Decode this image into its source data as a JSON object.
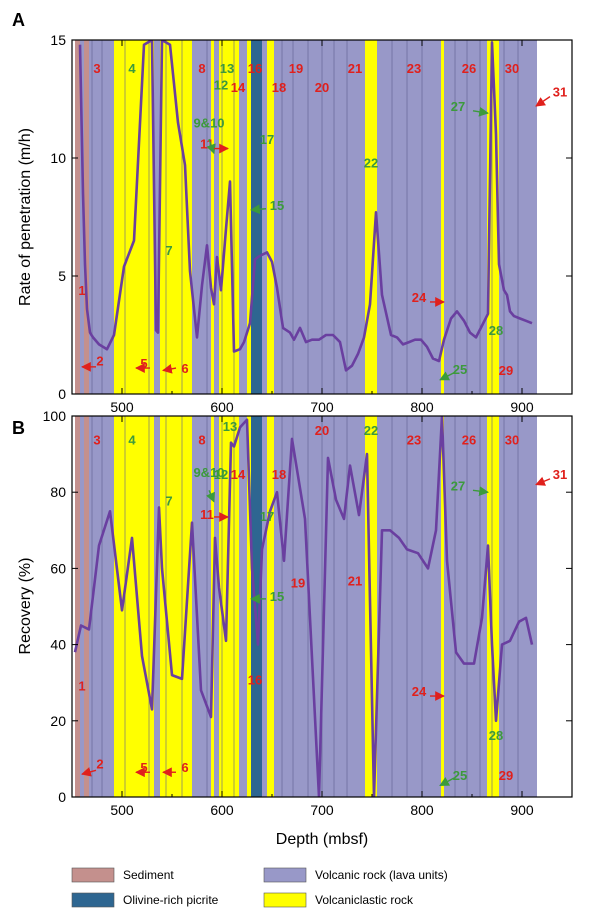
{
  "colors": {
    "sediment": "#c4908d",
    "picrite": "#2e6691",
    "lava": "#9898c8",
    "volcaniclastic": "#ffff00",
    "curve": "#6a3fa0",
    "red": "#e0201c",
    "green": "#3c9a3c"
  },
  "chart_data": [
    {
      "panel": "A",
      "type": "line",
      "xlabel": "",
      "ylabel": "Rate of penetration (m/h)",
      "xlim": [
        450,
        950
      ],
      "ylim": [
        0,
        15
      ],
      "xticks": [
        "500",
        "600",
        "700",
        "800",
        "900"
      ],
      "yticks": [
        "0",
        "5",
        "10",
        "15"
      ],
      "grid": false,
      "background_units": [
        {
          "type": "sediment",
          "from": 453,
          "to": 458
        },
        {
          "type": "lava",
          "from": 458,
          "to": 462
        },
        {
          "type": "sediment",
          "from": 462,
          "to": 467
        },
        {
          "type": "lava",
          "from": 467,
          "to": 492
        },
        {
          "type": "volcaniclastic",
          "from": 492,
          "to": 532
        },
        {
          "type": "lava",
          "from": 532,
          "to": 538
        },
        {
          "type": "volcaniclastic",
          "from": 538,
          "to": 570
        },
        {
          "type": "lava",
          "from": 570,
          "to": 589
        },
        {
          "type": "volcaniclastic",
          "from": 589,
          "to": 592
        },
        {
          "type": "lava",
          "from": 592,
          "to": 597
        },
        {
          "type": "volcaniclastic",
          "from": 597,
          "to": 617
        },
        {
          "type": "lava",
          "from": 617,
          "to": 625
        },
        {
          "type": "volcaniclastic",
          "from": 625,
          "to": 629
        },
        {
          "type": "picrite",
          "from": 629,
          "to": 640
        },
        {
          "type": "lava",
          "from": 640,
          "to": 645
        },
        {
          "type": "volcaniclastic",
          "from": 645,
          "to": 652
        },
        {
          "type": "lava",
          "from": 652,
          "to": 743
        },
        {
          "type": "volcaniclastic",
          "from": 743,
          "to": 755
        },
        {
          "type": "lava",
          "from": 755,
          "to": 819
        },
        {
          "type": "volcaniclastic",
          "from": 819,
          "to": 822
        },
        {
          "type": "lava",
          "from": 822,
          "to": 865
        },
        {
          "type": "volcaniclastic",
          "from": 865,
          "to": 877
        },
        {
          "type": "lava",
          "from": 877,
          "to": 915
        }
      ],
      "x": [
        458,
        461,
        463,
        465,
        468,
        471,
        477,
        485,
        492,
        502,
        512,
        522,
        530,
        534,
        536,
        540,
        548,
        556,
        563,
        568,
        575,
        580,
        585,
        589,
        592,
        595,
        599,
        604,
        608,
        612,
        618,
        622,
        628,
        633,
        636,
        640,
        645,
        650,
        655,
        661,
        668,
        672,
        678,
        684,
        690,
        697,
        704,
        711,
        718,
        724,
        730,
        736,
        742,
        748,
        754,
        760,
        769,
        775,
        781,
        787,
        793,
        799,
        805,
        811,
        817,
        822,
        829,
        835,
        842,
        848,
        854,
        860,
        866,
        870,
        874,
        877,
        882,
        885,
        888,
        892,
        898,
        904,
        910
      ],
      "y": [
        14.8,
        8.5,
        5.5,
        3.6,
        2.6,
        2.4,
        2.1,
        1.9,
        2.5,
        5.4,
        6.5,
        14.8,
        15.0,
        2.7,
        2.6,
        15.0,
        14.8,
        11.5,
        9.7,
        5.2,
        2.4,
        4.6,
        6.3,
        4.5,
        3.8,
        5.8,
        4.4,
        7.0,
        9.0,
        1.8,
        1.9,
        2.2,
        3.0,
        5.7,
        5.8,
        5.9,
        6.0,
        5.6,
        4.5,
        2.8,
        2.6,
        2.3,
        2.8,
        2.2,
        2.3,
        2.3,
        2.5,
        2.5,
        2.2,
        1.0,
        1.2,
        1.7,
        2.4,
        3.8,
        7.7,
        4.2,
        2.5,
        2.4,
        2.1,
        2.2,
        2.3,
        2.3,
        2.0,
        1.5,
        1.4,
        2.3,
        3.2,
        3.5,
        3.1,
        2.6,
        2.4,
        2.9,
        3.4,
        14.9,
        11.0,
        5.5,
        4.4,
        4.2,
        3.5,
        3.3,
        3.2,
        3.1,
        3.0
      ],
      "annotations": [
        {
          "text": "3",
          "color": "red",
          "x": 475,
          "y": 13.6
        },
        {
          "text": "4",
          "color": "green",
          "x": 510,
          "y": 13.6
        },
        {
          "text": "8",
          "color": "red",
          "x": 580,
          "y": 13.6
        },
        {
          "text": "13",
          "color": "green",
          "x": 605,
          "y": 13.6
        },
        {
          "text": "16",
          "color": "red",
          "x": 633,
          "y": 13.6
        },
        {
          "text": "19",
          "color": "red",
          "x": 674,
          "y": 13.6
        },
        {
          "text": "21",
          "color": "red",
          "x": 733,
          "y": 13.6
        },
        {
          "text": "23",
          "color": "red",
          "x": 792,
          "y": 13.6
        },
        {
          "text": "26",
          "color": "red",
          "x": 847,
          "y": 13.6
        },
        {
          "text": "30",
          "color": "red",
          "x": 890,
          "y": 13.6
        },
        {
          "text": "12",
          "color": "green",
          "x": 599,
          "y": 12.9
        },
        {
          "text": "14",
          "color": "red",
          "x": 616,
          "y": 12.8
        },
        {
          "text": "18",
          "color": "red",
          "x": 657,
          "y": 12.8
        },
        {
          "text": "20",
          "color": "red",
          "x": 700,
          "y": 12.8
        },
        {
          "text": "31",
          "color": "red",
          "x": 938,
          "y": 12.6
        },
        {
          "text": "27",
          "color": "green",
          "x": 836,
          "y": 12.0
        },
        {
          "text": "9&10",
          "color": "green",
          "x": 587,
          "y": 11.3
        },
        {
          "text": "11",
          "color": "red",
          "x": 585,
          "y": 10.4
        },
        {
          "text": "17",
          "color": "green",
          "x": 645,
          "y": 10.6
        },
        {
          "text": "22",
          "color": "green",
          "x": 749,
          "y": 9.6
        },
        {
          "text": "15",
          "color": "green",
          "x": 655,
          "y": 7.8
        },
        {
          "text": "7",
          "color": "green",
          "x": 547,
          "y": 5.9
        },
        {
          "text": "1",
          "color": "red",
          "x": 460,
          "y": 4.2
        },
        {
          "text": "24",
          "color": "red",
          "x": 797,
          "y": 3.9
        },
        {
          "text": "28",
          "color": "green",
          "x": 874,
          "y": 2.5
        },
        {
          "text": "2",
          "color": "red",
          "x": 478,
          "y": 1.2
        },
        {
          "text": "5",
          "color": "red",
          "x": 522,
          "y": 1.1
        },
        {
          "text": "6",
          "color": "red",
          "x": 563,
          "y": 0.9
        },
        {
          "text": "25",
          "color": "green",
          "x": 838,
          "y": 0.85
        },
        {
          "text": "29",
          "color": "red",
          "x": 884,
          "y": 0.8
        }
      ],
      "arrows": [
        {
          "color": "red",
          "from": [
            474,
            1.15
          ],
          "to": [
            460,
            1.15
          ]
        },
        {
          "color": "red",
          "from": [
            528,
            1.1
          ],
          "to": [
            514,
            1.1
          ]
        },
        {
          "color": "red",
          "from": [
            554,
            1.1
          ],
          "to": [
            541,
            1.0
          ]
        },
        {
          "color": "green",
          "from": [
            587,
            10.8
          ],
          "to": [
            592,
            10.2
          ]
        },
        {
          "color": "red",
          "from": [
            592,
            10.4
          ],
          "to": [
            606,
            10.4
          ]
        },
        {
          "color": "green",
          "from": [
            644,
            7.85
          ],
          "to": [
            629,
            7.8
          ]
        },
        {
          "color": "red",
          "from": [
            808,
            3.9
          ],
          "to": [
            822,
            3.9
          ]
        },
        {
          "color": "green",
          "from": [
            851,
            12.0
          ],
          "to": [
            866,
            11.9
          ]
        },
        {
          "color": "green",
          "from": [
            832,
            0.9
          ],
          "to": [
            818,
            0.6
          ]
        },
        {
          "color": "red",
          "from": [
            928,
            12.6
          ],
          "to": [
            914,
            12.2
          ]
        }
      ]
    },
    {
      "panel": "B",
      "type": "line",
      "xlabel": "Depth (mbsf)",
      "ylabel": "Recovery (%)",
      "xlim": [
        450,
        950
      ],
      "ylim": [
        0,
        100
      ],
      "xticks": [
        "500",
        "600",
        "700",
        "800",
        "900"
      ],
      "yticks": [
        "0",
        "20",
        "40",
        "60",
        "80",
        "100"
      ],
      "grid": false,
      "x": [
        453,
        459,
        467,
        477,
        488,
        500,
        510,
        520,
        530,
        537,
        540,
        550,
        560,
        570,
        579,
        589,
        593,
        597,
        604,
        609,
        612,
        618,
        625,
        630,
        636,
        640,
        648,
        655,
        662,
        670,
        683,
        697,
        706,
        714,
        722,
        728,
        737,
        745,
        752,
        760,
        768,
        777,
        785,
        796,
        806,
        814,
        820,
        825,
        834,
        842,
        852,
        860,
        866,
        870,
        874,
        880,
        888,
        897,
        904,
        910
      ],
      "y": [
        38,
        45,
        44,
        66,
        75,
        49,
        68,
        37,
        23,
        76,
        60,
        32,
        31,
        72,
        28,
        21,
        68,
        55,
        41,
        93,
        92,
        97,
        99,
        60,
        40,
        65,
        75,
        80,
        62,
        94,
        73,
        0,
        89,
        78,
        73,
        87,
        74,
        90,
        0,
        70,
        70,
        68,
        65,
        64,
        60,
        70,
        100,
        62,
        38,
        35,
        35,
        47,
        66,
        40,
        20,
        40,
        41,
        46,
        47,
        40
      ],
      "annotations": [
        {
          "text": "13",
          "color": "green",
          "x": 608,
          "y": 96
        },
        {
          "text": "20",
          "color": "red",
          "x": 700,
          "y": 95
        },
        {
          "text": "22",
          "color": "green",
          "x": 749,
          "y": 95
        },
        {
          "text": "3",
          "color": "red",
          "x": 475,
          "y": 92.5
        },
        {
          "text": "4",
          "color": "green",
          "x": 510,
          "y": 92.5
        },
        {
          "text": "8",
          "color": "red",
          "x": 580,
          "y": 92.5
        },
        {
          "text": "23",
          "color": "red",
          "x": 792,
          "y": 92.5
        },
        {
          "text": "26",
          "color": "red",
          "x": 847,
          "y": 92.5
        },
        {
          "text": "30",
          "color": "red",
          "x": 890,
          "y": 92.5
        },
        {
          "text": "31",
          "color": "red",
          "x": 938,
          "y": 83.5
        },
        {
          "text": "9&10",
          "color": "green",
          "x": 587,
          "y": 84
        },
        {
          "text": "12",
          "color": "green",
          "x": 599,
          "y": 83.5
        },
        {
          "text": "14",
          "color": "red",
          "x": 616,
          "y": 83.5
        },
        {
          "text": "18",
          "color": "red",
          "x": 657,
          "y": 83.5
        },
        {
          "text": "27",
          "color": "green",
          "x": 836,
          "y": 80.5
        },
        {
          "text": "7",
          "color": "green",
          "x": 547,
          "y": 76.5
        },
        {
          "text": "11",
          "color": "red",
          "x": 585,
          "y": 73
        },
        {
          "text": "17",
          "color": "green",
          "x": 645,
          "y": 72.5
        },
        {
          "text": "19",
          "color": "red",
          "x": 676,
          "y": 55
        },
        {
          "text": "15",
          "color": "green",
          "x": 655,
          "y": 51.5
        },
        {
          "text": "21",
          "color": "red",
          "x": 733,
          "y": 55.5
        },
        {
          "text": "16",
          "color": "red",
          "x": 633,
          "y": 29.5
        },
        {
          "text": "1",
          "color": "red",
          "x": 460,
          "y": 28
        },
        {
          "text": "24",
          "color": "red",
          "x": 797,
          "y": 26.5
        },
        {
          "text": "28",
          "color": "green",
          "x": 874,
          "y": 15
        },
        {
          "text": "2",
          "color": "red",
          "x": 478,
          "y": 7.5
        },
        {
          "text": "5",
          "color": "red",
          "x": 522,
          "y": 6.5
        },
        {
          "text": "6",
          "color": "red",
          "x": 563,
          "y": 6.5
        },
        {
          "text": "25",
          "color": "green",
          "x": 838,
          "y": 4.5
        },
        {
          "text": "29",
          "color": "red",
          "x": 884,
          "y": 4.5
        }
      ],
      "arrows": [
        {
          "color": "red",
          "from": [
            474,
            7.0
          ],
          "to": [
            460,
            6.0
          ]
        },
        {
          "color": "red",
          "from": [
            528,
            6.5
          ],
          "to": [
            514,
            6.5
          ]
        },
        {
          "color": "red",
          "from": [
            554,
            6.5
          ],
          "to": [
            541,
            6.5
          ]
        },
        {
          "color": "green",
          "from": [
            587,
            80.5
          ],
          "to": [
            592,
            77.5
          ]
        },
        {
          "color": "red",
          "from": [
            592,
            73.5
          ],
          "to": [
            606,
            73.5
          ]
        },
        {
          "color": "green",
          "from": [
            644,
            52
          ],
          "to": [
            629,
            52
          ]
        },
        {
          "color": "red",
          "from": [
            808,
            26.5
          ],
          "to": [
            822,
            26.5
          ]
        },
        {
          "color": "green",
          "from": [
            851,
            80.5
          ],
          "to": [
            866,
            80.0
          ]
        },
        {
          "color": "green",
          "from": [
            832,
            5.0
          ],
          "to": [
            818,
            3.0
          ]
        },
        {
          "color": "red",
          "from": [
            928,
            83.5
          ],
          "to": [
            914,
            82.0
          ]
        }
      ]
    }
  ],
  "legend": [
    {
      "type": "sediment",
      "label": "Sediment"
    },
    {
      "type": "lava",
      "label": "Volcanic rock (lava units)"
    },
    {
      "type": "picrite",
      "label": "Olivine-rich picrite"
    },
    {
      "type": "volcaniclastic",
      "label": "Volcaniclastic rock"
    }
  ]
}
